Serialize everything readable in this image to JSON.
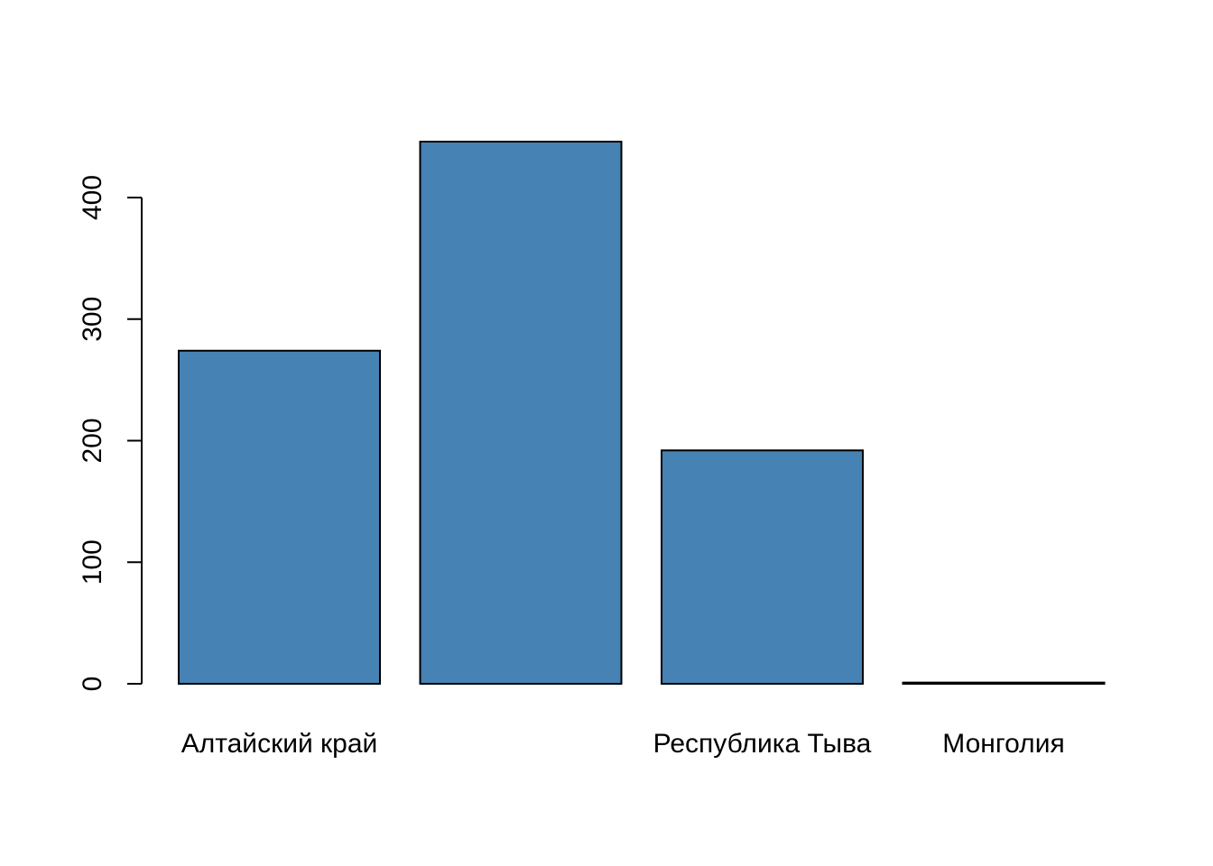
{
  "chart_data": {
    "type": "bar",
    "categories": [
      "Алтайский край",
      "",
      "Республика Тыва",
      "Монголия"
    ],
    "values": [
      274,
      446,
      192,
      1
    ],
    "ylim": [
      0,
      446
    ],
    "yticks": [
      0,
      100,
      200,
      300,
      400
    ],
    "title": "",
    "xlabel": "",
    "ylabel": "",
    "grid": false,
    "legend": "none",
    "colors": {
      "bar_fill": "#4682B4",
      "bar_stroke": "#000000"
    }
  }
}
